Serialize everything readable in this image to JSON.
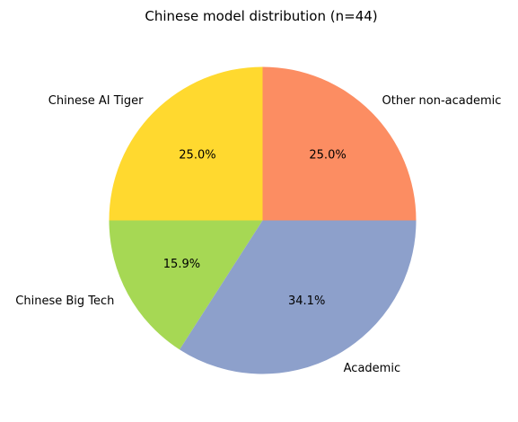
{
  "chart_data": {
    "type": "pie",
    "title": "Chinese model distribution (n=44)",
    "start_angle_deg": 90,
    "direction": "counterclockwise",
    "legend": "none",
    "slices": [
      {
        "label": "Chinese AI Tiger",
        "value": 11,
        "pct_label": "25.0%",
        "color": "#ffd92f"
      },
      {
        "label": "Chinese Big Tech",
        "value": 7,
        "pct_label": "15.9%",
        "color": "#a6d854"
      },
      {
        "label": "Academic",
        "value": 15,
        "pct_label": "34.1%",
        "color": "#8da0cb"
      },
      {
        "label": "Other non-academic",
        "value": 11,
        "pct_label": "25.0%",
        "color": "#fc8d62"
      }
    ]
  }
}
